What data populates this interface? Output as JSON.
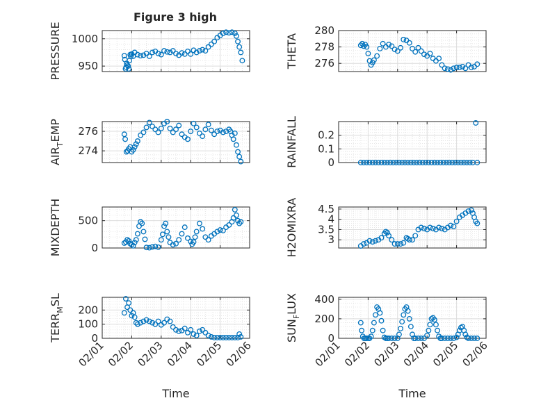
{
  "figure": {
    "title": "Figure 3 high"
  },
  "chart_data": [
    {
      "type": "scatter",
      "ylabel": "PRESSURE",
      "xlabel": "",
      "xlim": [
        1,
        6
      ],
      "ylim": [
        940,
        1015
      ],
      "yticks": [
        950,
        1000
      ],
      "ytick_labels": [
        "950",
        "1000"
      ],
      "xticks": [
        1,
        2,
        3,
        4,
        5,
        6
      ],
      "xtick_labels": [],
      "grid": "on",
      "series": [
        {
          "color": "#0072bd",
          "x": [
            1.75,
            1.77,
            1.79,
            1.81,
            1.83,
            1.85,
            1.88,
            1.9,
            1.92,
            1.95,
            1.97,
            2.0,
            2.05,
            2.1,
            2.2,
            2.3,
            2.4,
            2.5,
            2.6,
            2.7,
            2.8,
            2.9,
            3.0,
            3.1,
            3.2,
            3.3,
            3.4,
            3.5,
            3.6,
            3.7,
            3.8,
            3.9,
            4.0,
            4.1,
            4.2,
            4.3,
            4.4,
            4.5,
            4.6,
            4.7,
            4.8,
            4.9,
            5.0,
            5.1,
            5.2,
            5.3,
            5.4,
            5.5,
            5.55,
            5.6,
            5.65,
            5.7,
            5.75
          ],
          "y": [
            969,
            962,
            945,
            948,
            955,
            952,
            950,
            945,
            960,
            971,
            968,
            972,
            968,
            975,
            971,
            969,
            970,
            973,
            968,
            975,
            977,
            973,
            971,
            978,
            976,
            975,
            978,
            973,
            970,
            974,
            972,
            977,
            972,
            979,
            975,
            978,
            980,
            978,
            985,
            990,
            995,
            1002,
            1006,
            1010,
            1012,
            1011,
            1012,
            1010,
            1005,
            995,
            985,
            975,
            960
          ]
        }
      ]
    },
    {
      "type": "scatter",
      "ylabel": "THETA",
      "xlabel": "",
      "xlim": [
        1,
        6
      ],
      "ylim": [
        275,
        280
      ],
      "yticks": [
        276,
        278,
        280
      ],
      "ytick_labels": [
        "276",
        "278",
        "280"
      ],
      "xticks": [
        1,
        2,
        3,
        4,
        5,
        6
      ],
      "xtick_labels": [],
      "grid": "on",
      "series": [
        {
          "color": "#0072bd",
          "x": [
            1.75,
            1.8,
            1.85,
            1.9,
            1.95,
            2.0,
            2.05,
            2.1,
            2.15,
            2.2,
            2.3,
            2.4,
            2.5,
            2.6,
            2.7,
            2.8,
            2.9,
            3.0,
            3.1,
            3.2,
            3.3,
            3.4,
            3.5,
            3.6,
            3.7,
            3.8,
            3.9,
            4.0,
            4.1,
            4.2,
            4.3,
            4.4,
            4.5,
            4.6,
            4.7,
            4.8,
            4.9,
            5.0,
            5.1,
            5.2,
            5.3,
            5.4,
            5.5,
            5.6,
            5.7
          ],
          "y": [
            278.2,
            278.4,
            278.1,
            278.3,
            278.0,
            277.2,
            276.3,
            275.8,
            276.1,
            276.4,
            276.9,
            277.8,
            278.4,
            278.0,
            278.3,
            278.1,
            277.7,
            277.5,
            277.9,
            278.9,
            278.8,
            278.5,
            277.8,
            277.4,
            277.9,
            277.5,
            277.1,
            276.9,
            277.2,
            276.6,
            276.3,
            276.6,
            275.8,
            275.4,
            275.3,
            275.2,
            275.4,
            275.5,
            275.5,
            275.6,
            275.4,
            275.8,
            275.5,
            275.6,
            275.9
          ]
        }
      ]
    },
    {
      "type": "scatter",
      "ylabel": "AIR_TEMP",
      "xlabel": "",
      "xlim": [
        1,
        6
      ],
      "ylim": [
        272.8,
        277.0
      ],
      "yticks": [
        274,
        276
      ],
      "ytick_labels": [
        "274",
        "276"
      ],
      "xticks": [
        1,
        2,
        3,
        4,
        5,
        6
      ],
      "xtick_labels": [],
      "grid": "on",
      "series": [
        {
          "color": "#0072bd",
          "x": [
            1.75,
            1.78,
            1.82,
            1.86,
            1.9,
            1.95,
            2.0,
            2.05,
            2.1,
            2.15,
            2.2,
            2.3,
            2.4,
            2.5,
            2.6,
            2.7,
            2.8,
            2.9,
            3.0,
            3.1,
            3.2,
            3.3,
            3.4,
            3.5,
            3.6,
            3.7,
            3.8,
            3.9,
            4.0,
            4.1,
            4.2,
            4.3,
            4.4,
            4.5,
            4.6,
            4.7,
            4.8,
            4.9,
            5.0,
            5.1,
            5.2,
            5.3,
            5.35,
            5.4,
            5.45,
            5.5,
            5.55,
            5.6,
            5.65,
            5.7
          ],
          "y": [
            275.7,
            275.2,
            273.9,
            274.0,
            274.2,
            274.4,
            273.9,
            274.1,
            274.4,
            274.7,
            275.0,
            275.6,
            275.9,
            276.4,
            276.9,
            276.5,
            276.2,
            275.9,
            276.3,
            276.8,
            277.0,
            276.3,
            275.9,
            276.2,
            276.6,
            275.7,
            275.4,
            275.2,
            276.0,
            276.8,
            276.4,
            275.8,
            275.5,
            276.2,
            276.7,
            276.1,
            275.7,
            276.0,
            276.1,
            275.9,
            276.0,
            276.2,
            276.0,
            275.6,
            275.2,
            275.8,
            274.6,
            273.9,
            273.4,
            272.9
          ]
        }
      ]
    },
    {
      "type": "scatter",
      "ylabel": "RAINFALL",
      "xlabel": "",
      "xlim": [
        1,
        6
      ],
      "ylim": [
        0,
        0.3
      ],
      "yticks": [
        0,
        0.1,
        0.2
      ],
      "ytick_labels": [
        "0",
        "0.1",
        "0.2"
      ],
      "xticks": [
        1,
        2,
        3,
        4,
        5,
        6
      ],
      "xtick_labels": [],
      "grid": "on",
      "series": [
        {
          "color": "#0072bd",
          "x": [
            1.75,
            1.85,
            1.95,
            2.05,
            2.15,
            2.25,
            2.35,
            2.45,
            2.55,
            2.65,
            2.75,
            2.85,
            2.95,
            3.05,
            3.15,
            3.25,
            3.35,
            3.45,
            3.55,
            3.65,
            3.75,
            3.85,
            3.95,
            4.05,
            4.15,
            4.25,
            4.35,
            4.45,
            4.55,
            4.65,
            4.75,
            4.85,
            4.95,
            5.05,
            5.15,
            5.25,
            5.35,
            5.45,
            5.55,
            5.65,
            5.7
          ],
          "y": [
            0,
            0,
            0,
            0,
            0,
            0,
            0,
            0,
            0,
            0,
            0,
            0,
            0,
            0,
            0,
            0,
            0,
            0,
            0,
            0,
            0,
            0,
            0,
            0,
            0,
            0,
            0,
            0,
            0,
            0,
            0,
            0,
            0,
            0,
            0,
            0,
            0,
            0,
            0,
            0.29,
            0
          ]
        }
      ]
    },
    {
      "type": "scatter",
      "ylabel": "MIXDEPTH",
      "xlabel": "",
      "xlim": [
        1,
        6
      ],
      "ylim": [
        0,
        750
      ],
      "yticks": [
        0,
        500
      ],
      "ytick_labels": [
        "0",
        "500"
      ],
      "xticks": [
        1,
        2,
        3,
        4,
        5,
        6
      ],
      "xtick_labels": [],
      "grid": "on",
      "series": [
        {
          "color": "#0072bd",
          "x": [
            1.75,
            1.8,
            1.85,
            1.9,
            1.95,
            2.0,
            2.05,
            2.1,
            2.15,
            2.2,
            2.25,
            2.3,
            2.35,
            2.4,
            2.45,
            2.5,
            2.6,
            2.7,
            2.8,
            2.9,
            3.0,
            3.05,
            3.1,
            3.15,
            3.2,
            3.25,
            3.3,
            3.4,
            3.5,
            3.6,
            3.7,
            3.8,
            3.9,
            4.0,
            4.05,
            4.1,
            4.15,
            4.2,
            4.3,
            4.4,
            4.5,
            4.6,
            4.7,
            4.8,
            4.9,
            5.0,
            5.1,
            5.2,
            5.3,
            5.4,
            5.45,
            5.5,
            5.55,
            5.6,
            5.65,
            5.7
          ],
          "y": [
            90,
            110,
            150,
            130,
            80,
            60,
            40,
            100,
            150,
            260,
            400,
            480,
            450,
            300,
            160,
            10,
            5,
            20,
            30,
            15,
            150,
            250,
            400,
            450,
            300,
            200,
            100,
            60,
            80,
            150,
            260,
            380,
            180,
            120,
            70,
            110,
            200,
            300,
            450,
            350,
            200,
            150,
            220,
            260,
            300,
            330,
            320,
            380,
            420,
            480,
            550,
            700,
            600,
            500,
            450,
            480
          ]
        }
      ]
    },
    {
      "type": "scatter",
      "ylabel": "H2OMIXRA",
      "xlabel": "",
      "xlim": [
        1,
        6
      ],
      "ylim": [
        2.6,
        4.6
      ],
      "yticks": [
        3,
        3.5,
        4,
        4.5
      ],
      "ytick_labels": [
        "3",
        "3.5",
        "4",
        "4.5"
      ],
      "xticks": [
        1,
        2,
        3,
        4,
        5,
        6
      ],
      "xtick_labels": [],
      "grid": "on",
      "series": [
        {
          "color": "#0072bd",
          "x": [
            1.75,
            1.85,
            1.95,
            2.05,
            2.15,
            2.25,
            2.35,
            2.45,
            2.55,
            2.6,
            2.65,
            2.7,
            2.8,
            2.9,
            3.0,
            3.1,
            3.2,
            3.3,
            3.35,
            3.4,
            3.5,
            3.6,
            3.7,
            3.8,
            3.9,
            4.0,
            4.1,
            4.2,
            4.3,
            4.4,
            4.5,
            4.6,
            4.7,
            4.8,
            4.9,
            5.0,
            5.1,
            5.2,
            5.3,
            5.4,
            5.5,
            5.55,
            5.6,
            5.65,
            5.7
          ],
          "y": [
            2.7,
            2.8,
            2.85,
            2.95,
            2.9,
            2.95,
            3.0,
            3.1,
            3.3,
            3.4,
            3.35,
            3.2,
            3.0,
            2.8,
            2.8,
            2.8,
            2.85,
            3.1,
            3.05,
            3.0,
            3.0,
            3.2,
            3.5,
            3.6,
            3.55,
            3.5,
            3.6,
            3.55,
            3.5,
            3.6,
            3.55,
            3.5,
            3.6,
            3.7,
            3.65,
            3.9,
            4.1,
            4.2,
            4.3,
            4.4,
            4.45,
            4.3,
            4.1,
            3.9,
            3.8
          ]
        }
      ]
    },
    {
      "type": "scatter",
      "ylabel": "TERR_MSL",
      "xlabel": "Time",
      "xlim": [
        1,
        6
      ],
      "ylim": [
        0,
        290
      ],
      "yticks": [
        0,
        100,
        200
      ],
      "ytick_labels": [
        "0",
        "100",
        "200"
      ],
      "xticks": [
        1,
        2,
        3,
        4,
        5,
        6
      ],
      "xtick_labels": [
        "02/01",
        "02/02",
        "02/03",
        "02/04",
        "02/05",
        "02/06"
      ],
      "grid": "on",
      "series": [
        {
          "color": "#0072bd",
          "x": [
            1.75,
            1.8,
            1.85,
            1.9,
            1.95,
            2.0,
            2.05,
            2.1,
            2.15,
            2.2,
            2.3,
            2.4,
            2.5,
            2.6,
            2.7,
            2.8,
            2.9,
            3.0,
            3.1,
            3.2,
            3.3,
            3.4,
            3.5,
            3.6,
            3.7,
            3.8,
            3.9,
            4.0,
            4.1,
            4.2,
            4.3,
            4.4,
            4.5,
            4.6,
            4.7,
            4.8,
            4.9,
            5.0,
            5.1,
            5.2,
            5.3,
            5.4,
            5.5,
            5.6,
            5.65,
            5.7
          ],
          "y": [
            180,
            280,
            220,
            250,
            200,
            160,
            180,
            150,
            110,
            100,
            110,
            120,
            130,
            120,
            110,
            100,
            120,
            95,
            110,
            135,
            120,
            80,
            60,
            50,
            55,
            70,
            40,
            60,
            30,
            20,
            50,
            60,
            40,
            20,
            10,
            5,
            5,
            5,
            5,
            5,
            5,
            5,
            5,
            5,
            30,
            10
          ]
        }
      ]
    },
    {
      "type": "scatter",
      "ylabel": "SUN_FLUX",
      "xlabel": "Time",
      "xlim": [
        1,
        6
      ],
      "ylim": [
        0,
        420
      ],
      "yticks": [
        0,
        200,
        400
      ],
      "ytick_labels": [
        "0",
        "200",
        "400"
      ],
      "xticks": [
        1,
        2,
        3,
        4,
        5,
        6
      ],
      "xtick_labels": [
        "02/01",
        "02/02",
        "02/03",
        "02/04",
        "02/05",
        "02/06"
      ],
      "grid": "on",
      "series": [
        {
          "color": "#0072bd",
          "x": [
            1.75,
            1.78,
            1.82,
            1.86,
            1.9,
            1.95,
            2.0,
            2.05,
            2.1,
            2.15,
            2.2,
            2.25,
            2.3,
            2.35,
            2.4,
            2.45,
            2.5,
            2.55,
            2.6,
            2.65,
            2.7,
            2.8,
            2.9,
            3.0,
            3.05,
            3.1,
            3.15,
            3.2,
            3.25,
            3.3,
            3.35,
            3.4,
            3.45,
            3.5,
            3.55,
            3.6,
            3.7,
            3.8,
            3.9,
            4.0,
            4.05,
            4.1,
            4.15,
            4.2,
            4.25,
            4.3,
            4.35,
            4.4,
            4.45,
            4.5,
            4.6,
            4.7,
            4.8,
            4.9,
            5.0,
            5.05,
            5.1,
            5.15,
            5.2,
            5.25,
            5.3,
            5.35,
            5.4,
            5.5,
            5.6,
            5.7
          ],
          "y": [
            160,
            80,
            20,
            0,
            0,
            0,
            0,
            0,
            20,
            80,
            160,
            240,
            320,
            300,
            260,
            180,
            80,
            10,
            0,
            0,
            0,
            0,
            0,
            0,
            40,
            100,
            170,
            240,
            300,
            320,
            280,
            200,
            120,
            40,
            0,
            0,
            0,
            0,
            0,
            30,
            80,
            140,
            200,
            210,
            190,
            140,
            80,
            20,
            0,
            0,
            0,
            0,
            0,
            0,
            10,
            40,
            80,
            110,
            120,
            80,
            40,
            10,
            0,
            0,
            0,
            0
          ]
        }
      ]
    }
  ]
}
